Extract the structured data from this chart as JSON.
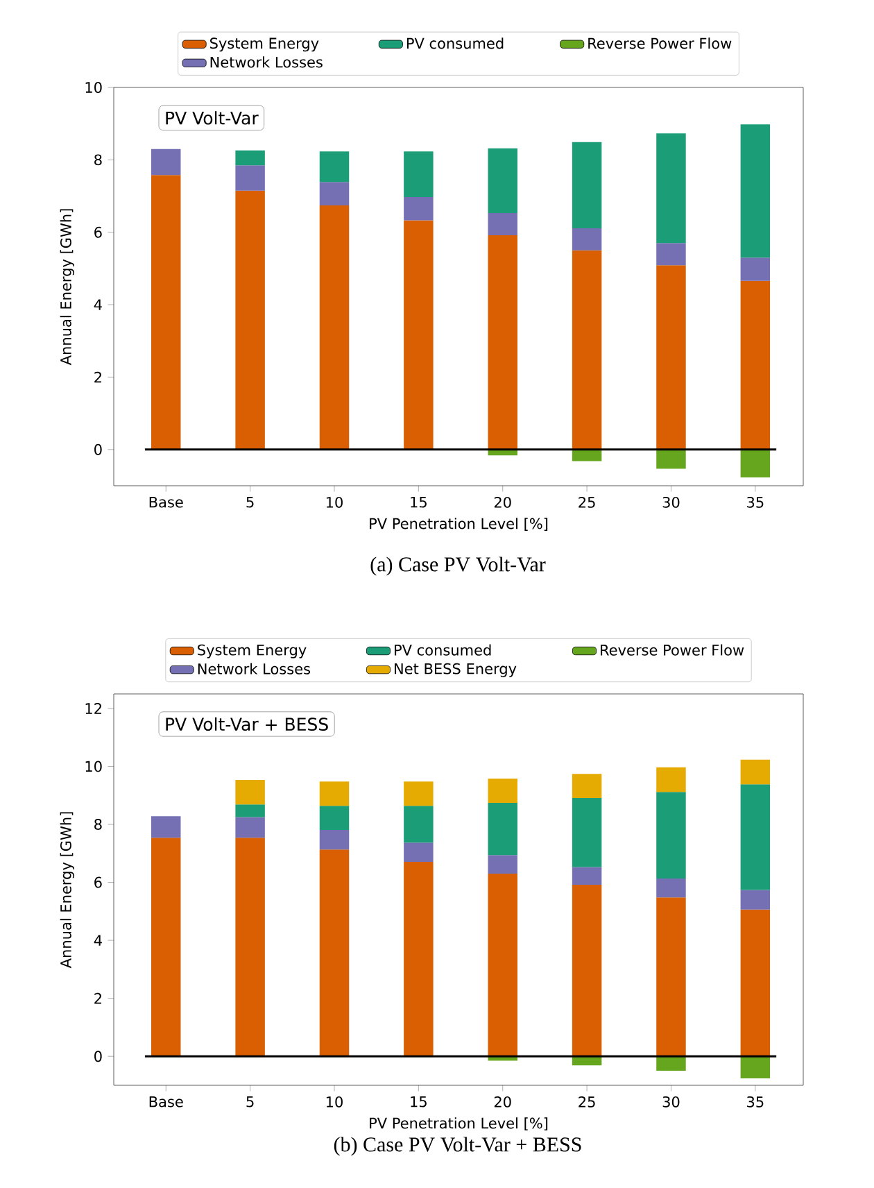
{
  "chart_data": [
    {
      "type": "bar",
      "stacked": true,
      "title": "PV Volt-Var",
      "xlabel": "PV Penetration Level [%]",
      "ylabel": "Annual Energy [GWh]",
      "categories": [
        "Base",
        "5",
        "10",
        "15",
        "20",
        "25",
        "30",
        "35"
      ],
      "series": [
        {
          "name": "System Energy",
          "color": "#d95f02",
          "values": [
            7.58,
            7.15,
            6.74,
            6.33,
            5.92,
            5.5,
            5.09,
            4.66
          ]
        },
        {
          "name": "Network Losses",
          "color": "#7570b3",
          "values": [
            0.72,
            0.7,
            0.65,
            0.64,
            0.61,
            0.61,
            0.61,
            0.64
          ]
        },
        {
          "name": "PV consumed",
          "color": "#1b9e77",
          "values": [
            0,
            0.41,
            0.84,
            1.26,
            1.79,
            2.38,
            3.03,
            3.68
          ]
        },
        {
          "name": "Reverse Power Flow",
          "color": "#66a61e",
          "values": [
            0,
            0,
            0,
            0,
            -0.16,
            -0.32,
            -0.53,
            -0.77
          ]
        }
      ],
      "ylim": [
        -1,
        10
      ],
      "yticks": [
        0,
        2,
        4,
        6,
        8,
        10
      ],
      "legend": "top",
      "ref_lines": [
        {
          "axis": "y",
          "value": 0,
          "color": "#000000"
        }
      ],
      "annotations": [
        "(a) Case PV Volt-Var"
      ]
    },
    {
      "type": "bar",
      "stacked": true,
      "title": "PV Volt-Var + BESS",
      "xlabel": "PV Penetration Level [%]",
      "ylabel": "Annual Energy [GWh]",
      "categories": [
        "Base",
        "5",
        "10",
        "15",
        "20",
        "25",
        "30",
        "35"
      ],
      "series": [
        {
          "name": "System Energy",
          "color": "#d95f02",
          "values": [
            7.54,
            7.54,
            7.13,
            6.71,
            6.3,
            5.92,
            5.48,
            5.06
          ]
        },
        {
          "name": "Network Losses",
          "color": "#7570b3",
          "values": [
            0.74,
            0.71,
            0.68,
            0.66,
            0.64,
            0.61,
            0.65,
            0.68
          ]
        },
        {
          "name": "PV consumed",
          "color": "#1b9e77",
          "values": [
            0,
            0.44,
            0.83,
            1.27,
            1.8,
            2.38,
            2.99,
            3.64
          ]
        },
        {
          "name": "Net BESS Energy",
          "color": "#e6ab02",
          "values": [
            0,
            0.84,
            0.84,
            0.84,
            0.84,
            0.83,
            0.85,
            0.85
          ]
        },
        {
          "name": "Reverse Power Flow",
          "color": "#66a61e",
          "values": [
            0,
            0,
            0,
            0,
            -0.15,
            -0.31,
            -0.5,
            -0.76
          ]
        }
      ],
      "ylim": [
        -1,
        12.5
      ],
      "yticks": [
        0,
        2,
        4,
        6,
        8,
        10,
        12
      ],
      "legend": "top",
      "ref_lines": [
        {
          "axis": "y",
          "value": 0,
          "color": "#000000"
        }
      ],
      "annotations": [
        "(b) Case PV Volt-Var + BESS"
      ]
    }
  ]
}
